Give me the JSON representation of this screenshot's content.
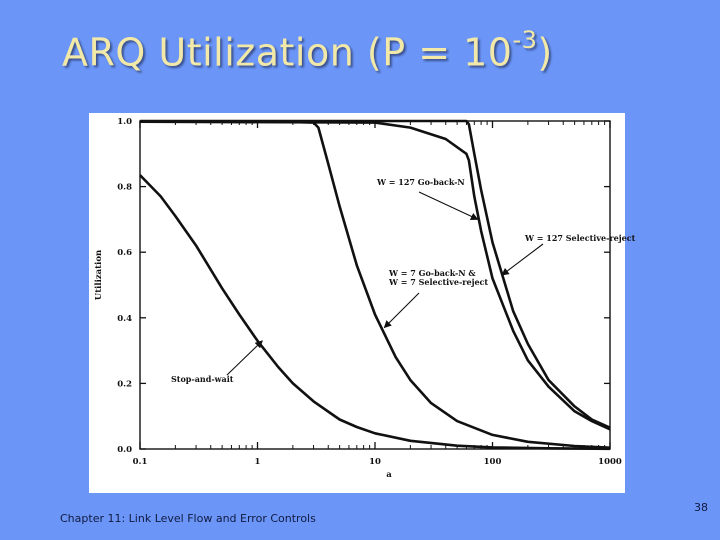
{
  "slide": {
    "title_main": "ARQ Utilization (P = 10",
    "title_exp": "-3",
    "title_close": ")",
    "footer": "Chapter 11: Link Level Flow and Error Controls",
    "page_number": "38",
    "background_color": "#6b96f8",
    "title_color": "#f2e9a8"
  },
  "chart_data": {
    "type": "line",
    "title": "",
    "xlabel": "a",
    "ylabel": "Utilization",
    "xscale": "log",
    "xlim": [
      0.1,
      1000
    ],
    "ylim": [
      0,
      1
    ],
    "x_ticks": [
      "0.1",
      "1",
      "10",
      "100",
      "1000"
    ],
    "y_ticks": [
      "0.0",
      "0.2",
      "0.4",
      "0.6",
      "0.8",
      "1.0"
    ],
    "grid": false,
    "series": [
      {
        "name": "Stop-and-wait",
        "points": [
          [
            0.1,
            0.835
          ],
          [
            0.15,
            0.77
          ],
          [
            0.2,
            0.71
          ],
          [
            0.3,
            0.62
          ],
          [
            0.5,
            0.49
          ],
          [
            0.7,
            0.41
          ],
          [
            1,
            0.33
          ],
          [
            1.5,
            0.25
          ],
          [
            2,
            0.2
          ],
          [
            3,
            0.145
          ],
          [
            5,
            0.09
          ],
          [
            7,
            0.067
          ],
          [
            10,
            0.048
          ],
          [
            20,
            0.025
          ],
          [
            50,
            0.01
          ],
          [
            100,
            0.005
          ],
          [
            300,
            0.002
          ],
          [
            1000,
            0.0005
          ]
        ]
      },
      {
        "name": "W = 7 Go-back-N & W = 7 Selective-reject",
        "points": [
          [
            0.1,
            0.998
          ],
          [
            1,
            0.998
          ],
          [
            2,
            0.997
          ],
          [
            3,
            0.995
          ],
          [
            3.3,
            0.98
          ],
          [
            4,
            0.87
          ],
          [
            5,
            0.74
          ],
          [
            7,
            0.56
          ],
          [
            10,
            0.41
          ],
          [
            15,
            0.28
          ],
          [
            20,
            0.21
          ],
          [
            30,
            0.14
          ],
          [
            50,
            0.085
          ],
          [
            100,
            0.043
          ],
          [
            200,
            0.022
          ],
          [
            500,
            0.009
          ],
          [
            1000,
            0.004
          ]
        ]
      },
      {
        "name": "W = 127 Go-back-N",
        "points": [
          [
            0.1,
            0.998
          ],
          [
            10,
            0.995
          ],
          [
            20,
            0.98
          ],
          [
            40,
            0.945
          ],
          [
            60,
            0.9
          ],
          [
            63,
            0.88
          ],
          [
            70,
            0.77
          ],
          [
            80,
            0.665
          ],
          [
            100,
            0.52
          ],
          [
            150,
            0.36
          ],
          [
            200,
            0.27
          ],
          [
            300,
            0.19
          ],
          [
            500,
            0.115
          ],
          [
            700,
            0.085
          ],
          [
            1000,
            0.06
          ]
        ]
      },
      {
        "name": "W = 127 Selective-reject",
        "points": [
          [
            0.1,
            1.0
          ],
          [
            60,
            1.0
          ],
          [
            63,
            0.99
          ],
          [
            70,
            0.9
          ],
          [
            80,
            0.79
          ],
          [
            100,
            0.63
          ],
          [
            150,
            0.42
          ],
          [
            200,
            0.32
          ],
          [
            300,
            0.21
          ],
          [
            500,
            0.13
          ],
          [
            700,
            0.09
          ],
          [
            1000,
            0.065
          ]
        ]
      }
    ],
    "annotations": [
      {
        "id": "gbn127",
        "lines": [
          "W = 127 Go-back-N"
        ]
      },
      {
        "id": "sr127",
        "lines": [
          "W = 127 Selective-reject"
        ]
      },
      {
        "id": "w7",
        "lines": [
          "W = 7 Go-back-N &",
          "W = 7 Selective-reject"
        ]
      },
      {
        "id": "saw",
        "lines": [
          "Stop-and-wait"
        ]
      }
    ]
  }
}
